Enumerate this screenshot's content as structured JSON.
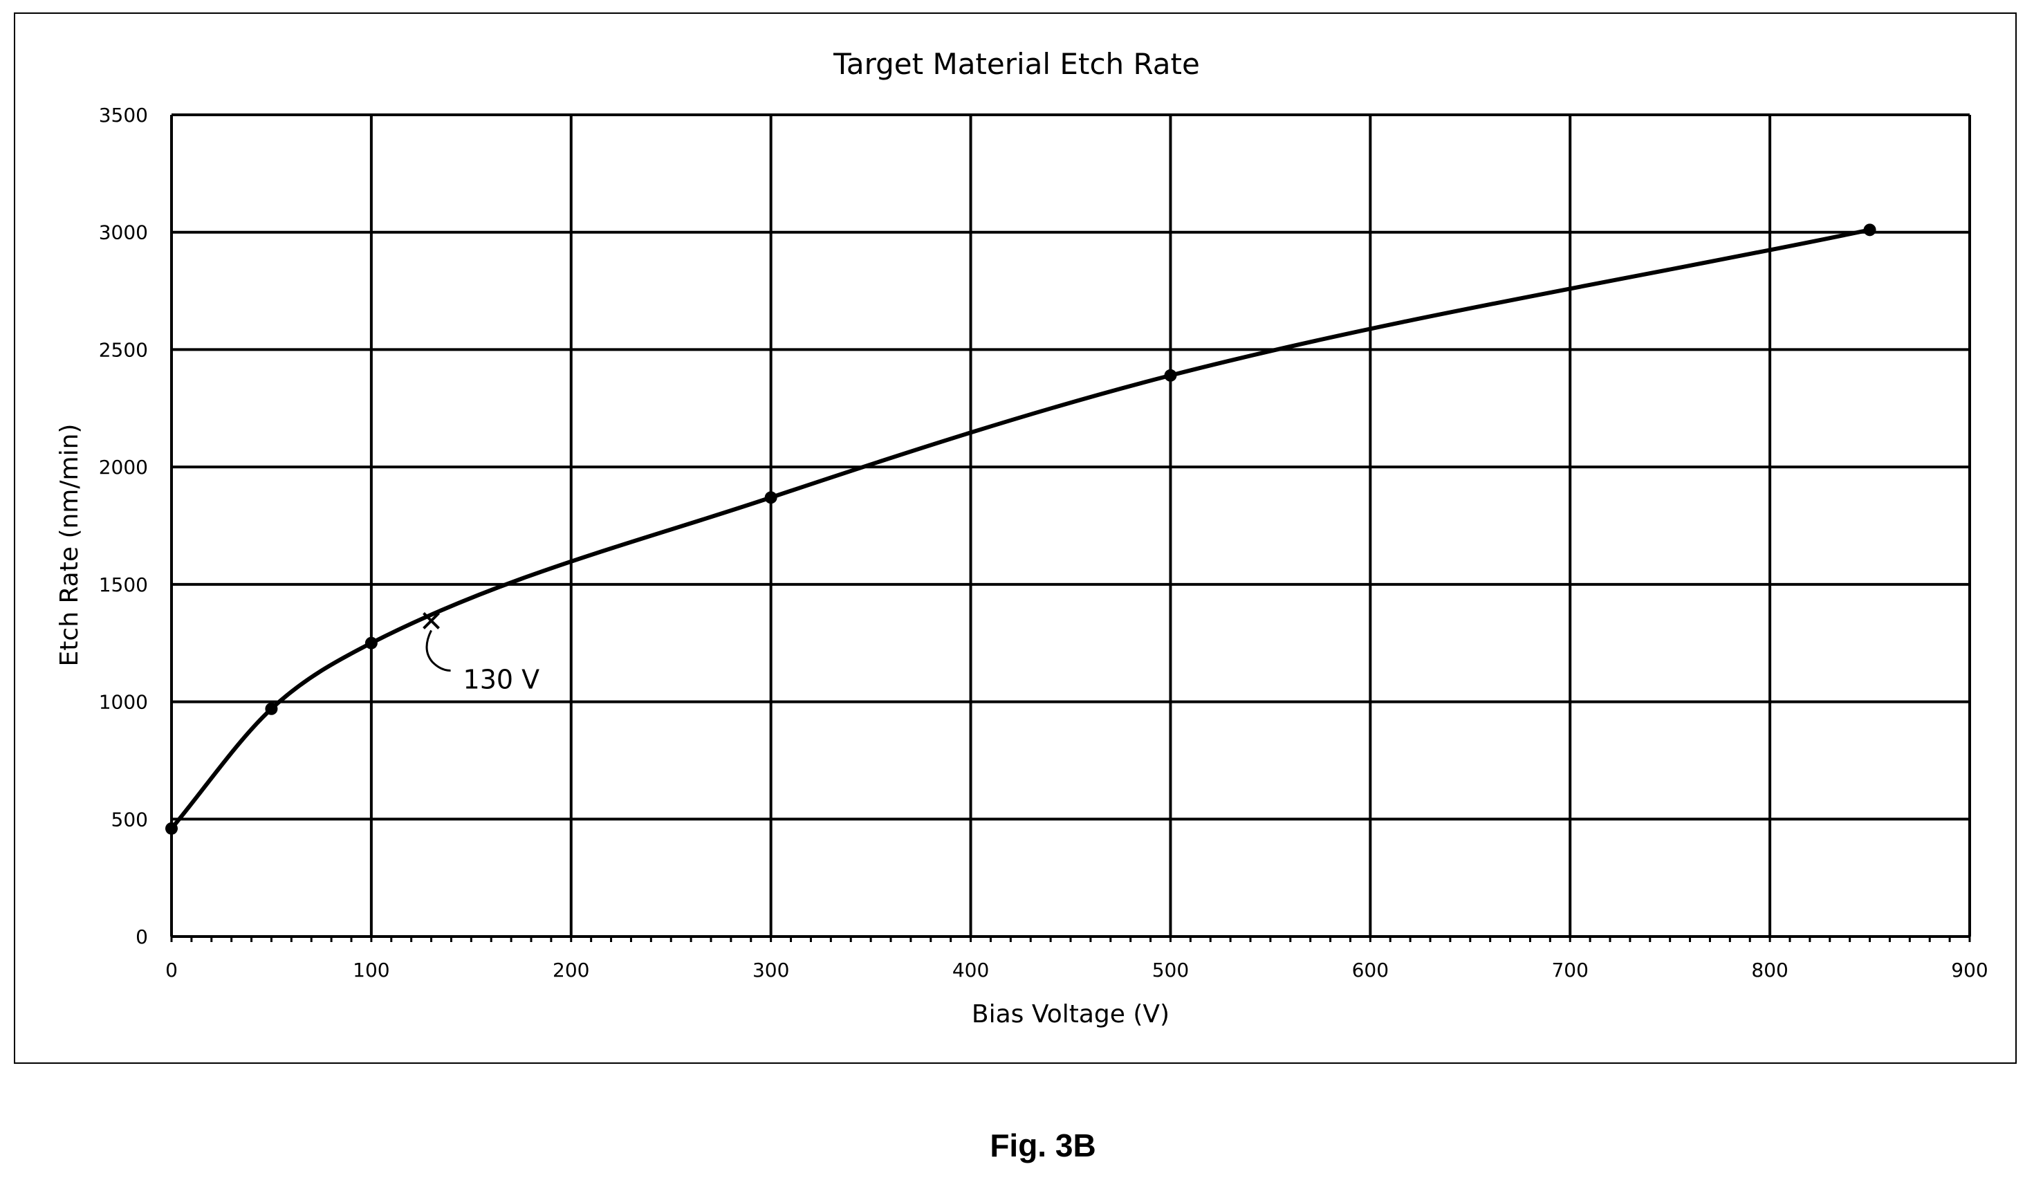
{
  "figure_caption": "Fig. 3B",
  "chart_data": {
    "type": "line",
    "title": "Target Material Etch Rate",
    "xlabel": "Bias Voltage (V)",
    "ylabel": "Etch Rate (nm/min)",
    "xlim": [
      0,
      900
    ],
    "ylim": [
      0,
      3500
    ],
    "x_ticks": [
      0,
      100,
      200,
      300,
      400,
      500,
      600,
      700,
      800,
      900
    ],
    "y_ticks": [
      0,
      500,
      1000,
      1500,
      2000,
      2500,
      3000,
      3500
    ],
    "x_tick_labels": [
      "0",
      "100",
      "200",
      "300",
      "400",
      "500",
      "600",
      "700",
      "800",
      "900"
    ],
    "y_tick_labels": [
      "0",
      "500",
      "1000",
      "1500",
      "2000",
      "2500",
      "3000",
      "3500"
    ],
    "grid": true,
    "series": [
      {
        "x": [
          0,
          50,
          100,
          300,
          500,
          850
        ],
        "y": [
          460,
          970,
          1250,
          1870,
          2390,
          3010
        ],
        "marker": "circle",
        "color": "#000000"
      }
    ],
    "annotations": [
      {
        "text": "130 V",
        "x": 130,
        "y": 1345,
        "marker": "x"
      }
    ]
  }
}
